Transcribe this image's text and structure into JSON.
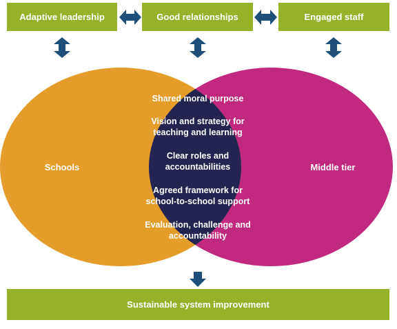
{
  "colors": {
    "green": "#95b22a",
    "orange": "#e49c2a",
    "magenta": "#c1297f",
    "navy": "#232451",
    "arrow": "#1e4f7a"
  },
  "top_boxes": {
    "adaptive_leadership": "Adaptive leadership",
    "good_relationships": "Good relationships",
    "engaged_staff": "Engaged staff"
  },
  "circles": {
    "schools": "Schools",
    "middle_tier": "Middle tier"
  },
  "intersection": {
    "shared_moral_purpose": "Shared moral purpose",
    "vision_line1": "Vision and strategy for",
    "vision_line2": "teaching and learning",
    "roles_line1": "Clear roles and",
    "roles_line2": "accountabilities",
    "framework_line1": "Agreed framework for",
    "framework_line2": "school-to-school support",
    "evaluation_line1": "Evaluation, challenge and",
    "evaluation_line2": "accountability"
  },
  "bottom_bar": {
    "label": "Sustainable system improvement"
  },
  "icons": {
    "horizontal_double_arrow": "double-arrow-horizontal-icon",
    "vertical_double_arrow": "double-arrow-vertical-icon",
    "down_arrow": "arrow-down-icon"
  }
}
